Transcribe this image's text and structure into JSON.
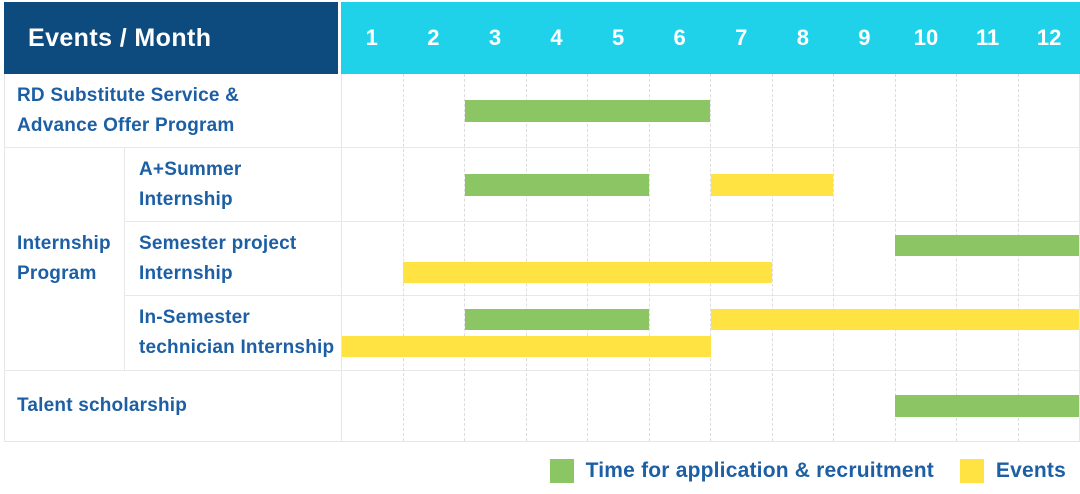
{
  "header": {
    "label": "Events / Month",
    "months": [
      "1",
      "2",
      "3",
      "4",
      "5",
      "6",
      "7",
      "8",
      "9",
      "10",
      "11",
      "12"
    ]
  },
  "colors": {
    "header_bg": "#0d4a7e",
    "months_bg": "#1fd2e9",
    "text_blue": "#1d5fa4",
    "green": "#8cc563",
    "yellow": "#ffe342"
  },
  "rows": [
    {
      "label_lines": [
        "RD Substitute Service &",
        "Advance Offer Program"
      ],
      "bars": [
        {
          "kind": "application",
          "lane": "center",
          "start": 3,
          "end": 6
        }
      ]
    },
    {
      "group_lines": [
        "Internship",
        "Program"
      ],
      "items": [
        {
          "label_lines": [
            "A+Summer",
            "Internship"
          ],
          "bars": [
            {
              "kind": "application",
              "lane": "center",
              "start": 3,
              "end": 5
            },
            {
              "kind": "events",
              "lane": "center",
              "start": 7,
              "end": 8
            }
          ]
        },
        {
          "label_lines": [
            "Semester project",
            "Internship"
          ],
          "bars": [
            {
              "kind": "application",
              "lane": "top",
              "start": 10,
              "end": 12
            },
            {
              "kind": "events",
              "lane": "bottom",
              "start": 2,
              "end": 7
            }
          ]
        },
        {
          "label_lines": [
            "In-Semester",
            "technician Internship"
          ],
          "bars": [
            {
              "kind": "application",
              "lane": "top",
              "start": 3,
              "end": 5
            },
            {
              "kind": "events",
              "lane": "top",
              "start": 7,
              "end": 12
            },
            {
              "kind": "events",
              "lane": "bottom",
              "start": 1,
              "end": 6
            }
          ]
        }
      ]
    },
    {
      "label_lines": [
        "Talent scholarship"
      ],
      "bars": [
        {
          "kind": "application",
          "lane": "center",
          "start": 10,
          "end": 12
        }
      ]
    }
  ],
  "legend": {
    "items": [
      {
        "kind": "application",
        "label": "Time for application & recruitment"
      },
      {
        "kind": "events",
        "label": "Events"
      }
    ]
  },
  "chart_data": {
    "type": "bar",
    "subtype": "gantt",
    "title": "Events / Month",
    "x_axis": {
      "label": "Month",
      "ticks": [
        1,
        2,
        3,
        4,
        5,
        6,
        7,
        8,
        9,
        10,
        11,
        12
      ],
      "range": [
        1,
        12
      ]
    },
    "grid": "vertical-dashed",
    "legend_position": "bottom-right",
    "legend": [
      {
        "name": "Time for application & recruitment",
        "color": "#8cc563"
      },
      {
        "name": "Events",
        "color": "#ffe342"
      }
    ],
    "tasks": [
      {
        "name": "RD Substitute Service & Advance Offer Program",
        "group": "",
        "spans": [
          {
            "series": "Time for application & recruitment",
            "start_month": 3,
            "end_month": 6
          }
        ]
      },
      {
        "name": "A+Summer Internship",
        "group": "Internship Program",
        "spans": [
          {
            "series": "Time for application & recruitment",
            "start_month": 3,
            "end_month": 5
          },
          {
            "series": "Events",
            "start_month": 7,
            "end_month": 8
          }
        ]
      },
      {
        "name": "Semester project Internship",
        "group": "Internship Program",
        "spans": [
          {
            "series": "Time for application & recruitment",
            "start_month": 10,
            "end_month": 12
          },
          {
            "series": "Events",
            "start_month": 2,
            "end_month": 7
          }
        ]
      },
      {
        "name": "In-Semester technician Internship",
        "group": "Internship Program",
        "spans": [
          {
            "series": "Time for application & recruitment",
            "start_month": 3,
            "end_month": 5
          },
          {
            "series": "Events",
            "start_month": 1,
            "end_month": 6
          },
          {
            "series": "Events",
            "start_month": 7,
            "end_month": 12
          }
        ]
      },
      {
        "name": "Talent scholarship",
        "group": "",
        "spans": [
          {
            "series": "Time for application & recruitment",
            "start_month": 10,
            "end_month": 12
          }
        ]
      }
    ]
  }
}
